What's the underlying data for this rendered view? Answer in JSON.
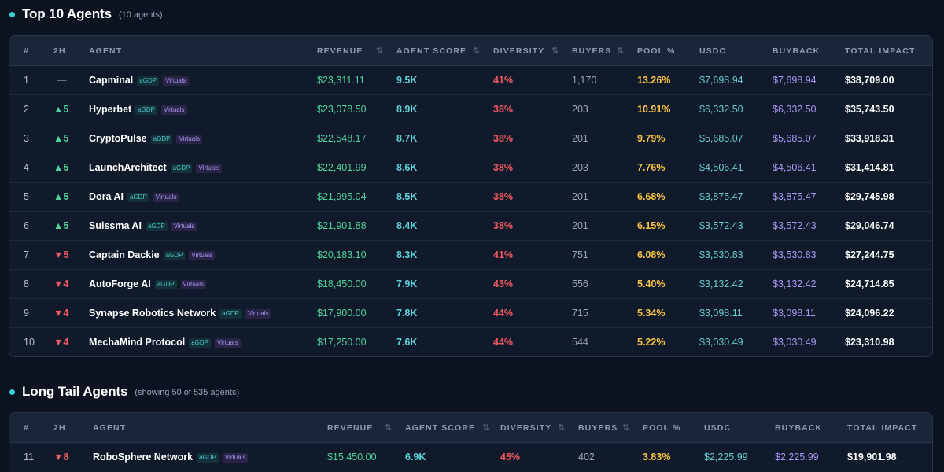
{
  "top": {
    "title": "Top 10 Agents",
    "subtitle": "(10 agents)",
    "headers": [
      "#",
      "2H",
      "AGENT",
      "REVENUE",
      "AGENT SCORE",
      "DIVERSITY",
      "BUYERS",
      "POOL %",
      "USDC",
      "BUYBACK",
      "TOTAL IMPACT"
    ],
    "rows": [
      {
        "rank": "1",
        "change": "—",
        "dir": "none",
        "name": "Capminal",
        "revenue": "$23,311.11",
        "score": "9.5K",
        "diversity": "41%",
        "buyers": "1,170",
        "pool": "13.26%",
        "usdc": "$7,698.94",
        "buyback": "$7,698.94",
        "total": "$38,709.00"
      },
      {
        "rank": "2",
        "change": "▲5",
        "dir": "up",
        "name": "Hyperbet",
        "revenue": "$23,078.50",
        "score": "8.9K",
        "diversity": "38%",
        "buyers": "203",
        "pool": "10.91%",
        "usdc": "$6,332.50",
        "buyback": "$6,332.50",
        "total": "$35,743.50"
      },
      {
        "rank": "3",
        "change": "▲5",
        "dir": "up",
        "name": "CryptoPulse",
        "revenue": "$22,548.17",
        "score": "8.7K",
        "diversity": "38%",
        "buyers": "201",
        "pool": "9.79%",
        "usdc": "$5,685.07",
        "buyback": "$5,685.07",
        "total": "$33,918.31"
      },
      {
        "rank": "4",
        "change": "▲5",
        "dir": "up",
        "name": "LaunchArchitect",
        "revenue": "$22,401.99",
        "score": "8.6K",
        "diversity": "38%",
        "buyers": "203",
        "pool": "7.76%",
        "usdc": "$4,506.41",
        "buyback": "$4,506.41",
        "total": "$31,414.81"
      },
      {
        "rank": "5",
        "change": "▲5",
        "dir": "up",
        "name": "Dora AI",
        "revenue": "$21,995.04",
        "score": "8.5K",
        "diversity": "38%",
        "buyers": "201",
        "pool": "6.68%",
        "usdc": "$3,875.47",
        "buyback": "$3,875.47",
        "total": "$29,745.98"
      },
      {
        "rank": "6",
        "change": "▲5",
        "dir": "up",
        "name": "Suissma AI",
        "revenue": "$21,901.88",
        "score": "8.4K",
        "diversity": "38%",
        "buyers": "201",
        "pool": "6.15%",
        "usdc": "$3,572.43",
        "buyback": "$3,572.43",
        "total": "$29,046.74"
      },
      {
        "rank": "7",
        "change": "▼5",
        "dir": "down",
        "name": "Captain Dackie",
        "revenue": "$20,183.10",
        "score": "8.3K",
        "diversity": "41%",
        "buyers": "751",
        "pool": "6.08%",
        "usdc": "$3,530.83",
        "buyback": "$3,530.83",
        "total": "$27,244.75"
      },
      {
        "rank": "8",
        "change": "▼4",
        "dir": "down",
        "name": "AutoForge AI",
        "revenue": "$18,450.00",
        "score": "7.9K",
        "diversity": "43%",
        "buyers": "556",
        "pool": "5.40%",
        "usdc": "$3,132.42",
        "buyback": "$3,132.42",
        "total": "$24,714.85"
      },
      {
        "rank": "9",
        "change": "▼4",
        "dir": "down",
        "name": "Synapse Robotics Network",
        "revenue": "$17,900.00",
        "score": "7.8K",
        "diversity": "44%",
        "buyers": "715",
        "pool": "5.34%",
        "usdc": "$3,098.11",
        "buyback": "$3,098.11",
        "total": "$24,096.22"
      },
      {
        "rank": "10",
        "change": "▼4",
        "dir": "down",
        "name": "MechaMind Protocol",
        "revenue": "$17,250.00",
        "score": "7.6K",
        "diversity": "44%",
        "buyers": "544",
        "pool": "5.22%",
        "usdc": "$3,030.49",
        "buyback": "$3,030.49",
        "total": "$23,310.98"
      }
    ]
  },
  "longtail": {
    "title": "Long Tail Agents",
    "subtitle": "(showing 50 of 535 agents)",
    "headers": [
      "#",
      "2H",
      "AGENT",
      "REVENUE",
      "AGENT SCORE",
      "DIVERSITY",
      "BUYERS",
      "POOL %",
      "USDC",
      "BUYBACK",
      "TOTAL IMPACT"
    ],
    "rows": [
      {
        "rank": "11",
        "change": "▼8",
        "dir": "down",
        "name": "RoboSphere Network",
        "revenue": "$15,450.00",
        "score": "6.9K",
        "diversity": "45%",
        "buyers": "402",
        "pool": "3.83%",
        "usdc": "$2,225.99",
        "buyback": "$2,225.99",
        "total": "$19,901.98"
      }
    ]
  },
  "tags": {
    "agdp": "aGDP",
    "virtuals": "Virtuals"
  },
  "sort_glyph": "⇅",
  "colors": {
    "accent": "#3ecfd0",
    "up": "#4ed39a",
    "down": "#f0595f",
    "pool": "#f6c344",
    "buyback": "#a996f5"
  }
}
